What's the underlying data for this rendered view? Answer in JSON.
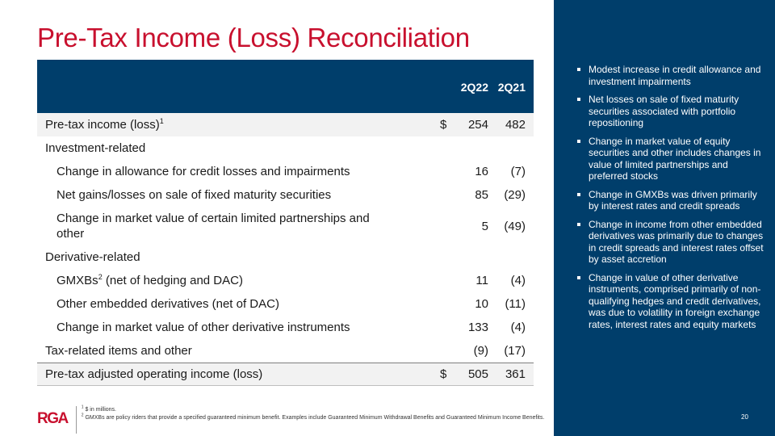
{
  "title": "Pre-Tax Income (Loss) Reconciliation",
  "table": {
    "columns": [
      "2Q22",
      "2Q21"
    ],
    "rows": [
      {
        "label": "Pre-tax income (loss)",
        "sup": "1",
        "dollar": "$",
        "v1": "254",
        "v2": "482",
        "style": "shaded"
      },
      {
        "label": "Investment-related",
        "v1": "",
        "v2": ""
      },
      {
        "label": "Change in allowance for credit losses and impairments",
        "v1": "16",
        "v2": "(7)"
      },
      {
        "label": "Net gains/losses on sale of fixed maturity securities",
        "v1": "85",
        "v2": "(29)"
      },
      {
        "label": "Change in market value of certain limited partnerships and other",
        "v1": "5",
        "v2": "(49)"
      },
      {
        "label": "Derivative-related",
        "v1": "",
        "v2": ""
      },
      {
        "label": "GMXBs",
        "sup": "2",
        "label_suffix": " (net of hedging and DAC)",
        "v1": "11",
        "v2": "(4)"
      },
      {
        "label": "Other embedded derivatives (net of DAC)",
        "v1": "10",
        "v2": "(11)"
      },
      {
        "label": "Change in market value of other derivative instruments",
        "v1": "133",
        "v2": "(4)"
      },
      {
        "label": "Tax-related items and other",
        "v1": "(9)",
        "v2": "(17)"
      },
      {
        "label": "Pre-tax adjusted operating income (loss)",
        "dollar": "$",
        "v1": "505",
        "v2": "361"
      }
    ]
  },
  "sidebar": {
    "bullets": [
      "Modest increase in credit allowance and investment impairments",
      "Net losses on sale of fixed maturity securities associated with portfolio repositioning",
      "Change in market value of equity securities and other includes changes in value of limited partnerships and preferred stocks",
      "Change in GMXBs was driven primarily by interest rates and credit spreads",
      "Change in income from other embedded derivatives was primarily due to changes in credit spreads and interest rates offset by asset accretion",
      "Change in value of other derivative instruments, comprised primarily of non-qualifying hedges and credit derivatives, was due to volatility in foreign exchange rates, interest rates and equity markets"
    ],
    "page_number": "20"
  },
  "footer": {
    "logo": "RGA",
    "note1_sup": "1",
    "note1": " $ in millions.",
    "note2_sup": "2",
    "note2": " GMXBs are policy riders that provide a specified guaranteed minimum benefit. Examples include Guaranteed Minimum Withdrawal Benefits and Guaranteed Minimum Income Benefits."
  },
  "colors": {
    "title_red": "#c8102e",
    "navy": "#003e6b",
    "row_shade": "#f2f2f2"
  }
}
